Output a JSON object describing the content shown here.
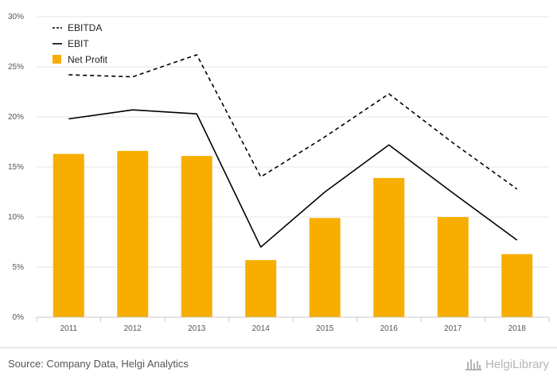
{
  "chart_data": {
    "type": "bar",
    "categories": [
      "2011",
      "2012",
      "2013",
      "2014",
      "2015",
      "2016",
      "2017",
      "2018"
    ],
    "series": [
      {
        "name": "EBITDA",
        "kind": "line",
        "style": "dashed",
        "color": "#000000",
        "values": [
          24.2,
          24.0,
          26.2,
          14.0,
          18.0,
          22.3,
          17.4,
          12.8
        ]
      },
      {
        "name": "EBIT",
        "kind": "line",
        "style": "solid",
        "color": "#000000",
        "values": [
          19.8,
          20.7,
          20.3,
          7.0,
          12.5,
          17.2,
          12.4,
          7.7
        ]
      },
      {
        "name": "Net Profit",
        "kind": "bar",
        "color": "#f7ae00",
        "values": [
          16.3,
          16.6,
          16.1,
          5.7,
          9.9,
          13.9,
          10.0,
          6.3
        ]
      }
    ],
    "y_ticks": [
      "0%",
      "5%",
      "10%",
      "15%",
      "20%",
      "25%",
      "30%"
    ],
    "ylim": [
      0,
      30
    ],
    "grid": true,
    "legend_position": "top-left"
  },
  "footer": {
    "source": "Source: Company Data, Helgi Analytics",
    "brand": "HelgiLibrary"
  },
  "icons": {
    "brand": "library-building-icon"
  }
}
